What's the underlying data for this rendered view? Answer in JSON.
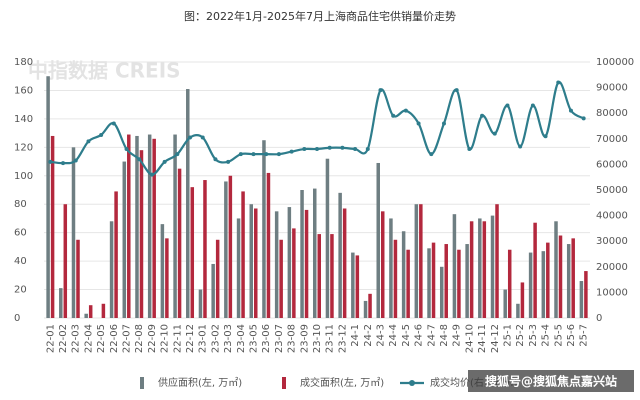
{
  "chart_data": {
    "type": "bar-line",
    "title": "图：2022年1月-2025年7月上海商品住宅供销量价走势",
    "watermark": "中指数据 CREIS",
    "source_mark": "搜狐号@搜狐焦点嘉兴站",
    "categories": [
      "22-01",
      "22-02",
      "22-03",
      "22-04",
      "22-05",
      "22-06",
      "22-07",
      "22-08",
      "22-09",
      "22-10",
      "22-11",
      "22-12",
      "23-01",
      "23-02",
      "23-03",
      "23-04",
      "23-05",
      "23-06",
      "23-07",
      "23-08",
      "23-09",
      "23-10",
      "23-11",
      "23-12",
      "24-1",
      "24-2",
      "24-3",
      "24-4",
      "24-5",
      "24-6",
      "24-7",
      "24-8",
      "24-9",
      "24-10",
      "24-11",
      "24-12",
      "25-1",
      "25-2",
      "25-3",
      "25-4",
      "25-5",
      "25-6",
      "25-7"
    ],
    "series": [
      {
        "name": "供应面积(左, 万㎡)",
        "type": "bar",
        "color": "#6e7e82",
        "values": [
          170,
          21,
          120,
          3,
          0,
          68,
          110,
          128,
          129,
          66,
          129,
          161,
          20,
          38,
          96,
          70,
          80,
          125,
          75,
          78,
          90,
          91,
          112,
          88,
          46,
          12,
          109,
          70,
          61,
          80,
          49,
          36,
          73,
          52,
          70,
          72,
          20,
          10,
          46,
          47,
          68,
          52,
          26
        ]
      },
      {
        "name": "成交面积(左, 万㎡)",
        "type": "bar",
        "color": "#b3283d",
        "values": [
          128,
          80,
          55,
          9,
          10,
          89,
          129,
          118,
          126,
          56,
          105,
          92,
          97,
          55,
          100,
          89,
          77,
          102,
          55,
          63,
          76,
          59,
          59,
          77,
          44,
          17,
          75,
          55,
          48,
          80,
          53,
          52,
          48,
          68,
          68,
          80,
          48,
          25,
          67,
          53,
          58,
          56,
          33
        ]
      },
      {
        "name": "成交均价(右, 元/㎡)",
        "type": "line",
        "axis": "y2",
        "color": "#2e7d8c",
        "values": [
          61000,
          60500,
          61500,
          69000,
          71500,
          76000,
          66000,
          62000,
          56000,
          61000,
          64000,
          70500,
          70500,
          62000,
          61000,
          64000,
          64000,
          64000,
          64000,
          65000,
          66000,
          66000,
          66500,
          66500,
          66000,
          66000,
          89000,
          79000,
          81000,
          76000,
          64000,
          76000,
          89000,
          66000,
          79000,
          72000,
          83000,
          67000,
          83000,
          71000,
          92000,
          81000,
          78000
        ]
      }
    ],
    "ylim": [
      0,
      180
    ],
    "yticks": [
      0,
      20,
      40,
      60,
      80,
      100,
      120,
      140,
      160,
      180
    ],
    "y2lim": [
      0,
      100000
    ],
    "y2ticks": [
      0,
      10000,
      20000,
      30000,
      40000,
      50000,
      60000,
      70000,
      80000,
      90000,
      100000
    ],
    "grid": true
  }
}
